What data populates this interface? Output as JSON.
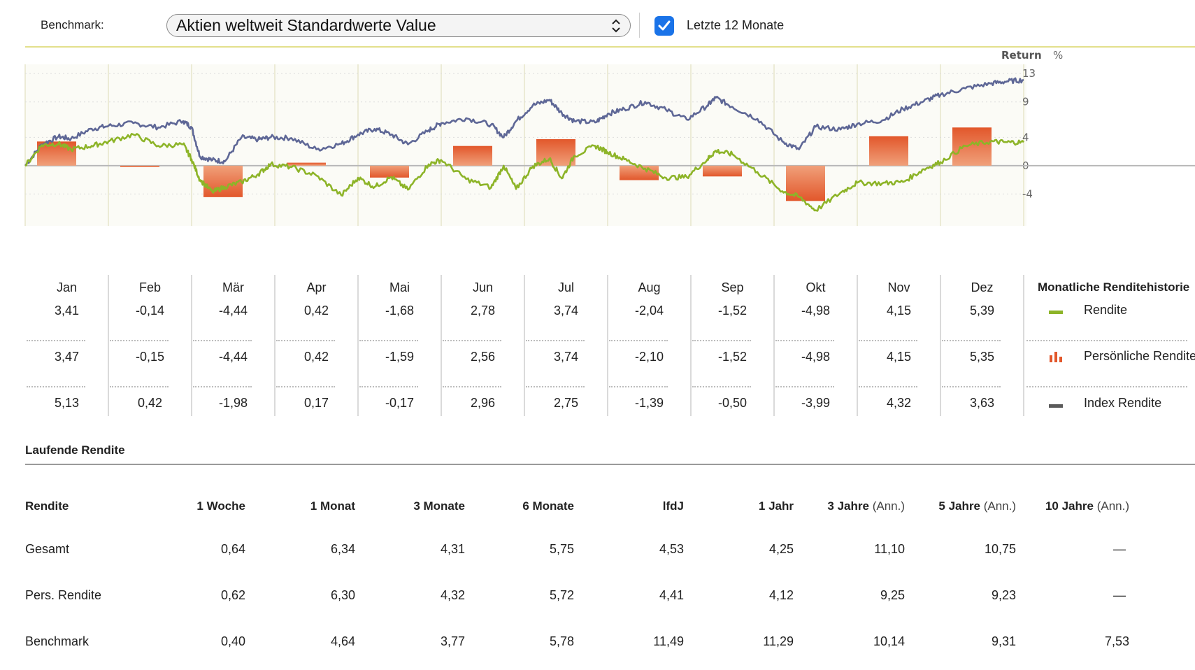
{
  "header": {
    "benchmark_label": "Benchmark:",
    "benchmark_value": "Aktien weltweit Standardwerte Value",
    "checkbox_label": "Letzte 12 Monate",
    "checkbox_checked": true
  },
  "colors": {
    "accent_line": "#e3e08c",
    "rendite": "#8db428",
    "index": "#5e6796",
    "bar": "#e2572b",
    "checkbox": "#1a73e8"
  },
  "chart_data": {
    "type": "line",
    "y_label": "Return",
    "y_unit": "%",
    "y_ticks": [
      13,
      9,
      4,
      0,
      -4
    ],
    "ylim": [
      -8.5,
      14.3
    ],
    "months": [
      "Jan",
      "Feb",
      "Mär",
      "Apr",
      "Mai",
      "Jun",
      "Jul",
      "Aug",
      "Sep",
      "Okt",
      "Nov",
      "Dez"
    ],
    "bars_monthly_rendite": [
      3.41,
      -0.14,
      -4.44,
      0.42,
      -1.68,
      2.78,
      3.74,
      -2.04,
      -1.52,
      -4.98,
      4.15,
      5.39
    ],
    "series": [
      {
        "name": "Index Rendite (cumulative)",
        "color_key": "index",
        "x": [
          0,
          0.2,
          0.4,
          0.55,
          0.8,
          1.0,
          1.3,
          1.6,
          1.9,
          2.0,
          2.1,
          2.25,
          2.4,
          2.6,
          2.8,
          2.95,
          3.2,
          3.5,
          3.8,
          4.0,
          4.2,
          4.4,
          4.6,
          4.85,
          5.0,
          5.3,
          5.6,
          5.75,
          5.9,
          6.1,
          6.3,
          6.45,
          6.6,
          6.85,
          7.0,
          7.2,
          7.45,
          7.7,
          7.95,
          8.2,
          8.3,
          8.5,
          8.8,
          9.1,
          9.3,
          9.5,
          9.8,
          10.0,
          10.3,
          10.55,
          10.8,
          11.0,
          11.3,
          11.6,
          11.8,
          12.0
        ],
        "values": [
          0.0,
          3.0,
          4.1,
          3.8,
          5.2,
          5.6,
          6.0,
          5.4,
          6.3,
          5.4,
          1.3,
          0.8,
          0.6,
          4.0,
          3.7,
          4.0,
          3.9,
          2.3,
          3.1,
          4.4,
          5.2,
          4.4,
          3.0,
          5.0,
          6.0,
          6.7,
          5.8,
          4.0,
          6.3,
          8.5,
          9.3,
          7.4,
          6.3,
          6.1,
          7.3,
          8.0,
          9.0,
          7.9,
          6.5,
          8.5,
          9.6,
          8.3,
          6.6,
          3.4,
          2.3,
          5.5,
          5.1,
          5.9,
          6.4,
          8.0,
          9.1,
          10.0,
          10.9,
          11.6,
          11.9,
          12.1
        ]
      },
      {
        "name": "Rendite (cumulative)",
        "color_key": "rendite",
        "x": [
          0,
          0.2,
          0.4,
          0.55,
          0.8,
          1.0,
          1.3,
          1.6,
          1.9,
          2.0,
          2.1,
          2.25,
          2.4,
          2.6,
          2.8,
          2.95,
          3.2,
          3.5,
          3.8,
          4.0,
          4.2,
          4.4,
          4.6,
          4.85,
          5.0,
          5.3,
          5.6,
          5.75,
          5.9,
          6.1,
          6.3,
          6.45,
          6.6,
          6.85,
          7.0,
          7.2,
          7.45,
          7.7,
          7.95,
          8.2,
          8.3,
          8.5,
          8.8,
          9.1,
          9.3,
          9.5,
          9.8,
          10.0,
          10.3,
          10.55,
          10.8,
          11.0,
          11.3,
          11.6,
          11.8,
          12.0
        ],
        "values": [
          0.0,
          2.9,
          3.1,
          2.3,
          2.8,
          3.4,
          4.4,
          2.8,
          3.0,
          0.9,
          -2.0,
          -3.7,
          -3.0,
          -2.3,
          -1.2,
          0.2,
          -0.2,
          -1.4,
          -4.2,
          -1.7,
          -3.0,
          -1.6,
          -3.4,
          0.2,
          0.8,
          -1.9,
          -3.1,
          0.0,
          -3.3,
          -0.1,
          1.0,
          -1.8,
          1.4,
          2.8,
          1.9,
          0.9,
          -0.4,
          -1.7,
          -1.6,
          0.9,
          2.1,
          1.6,
          -0.9,
          -3.6,
          -4.4,
          -6.3,
          -3.8,
          -2.4,
          -2.5,
          -2.3,
          -0.5,
          0.5,
          2.8,
          3.4,
          3.3,
          3.3
        ]
      }
    ]
  },
  "monthly": {
    "months": [
      "Jan",
      "Feb",
      "Mär",
      "Apr",
      "Mai",
      "Jun",
      "Jul",
      "Aug",
      "Sep",
      "Okt",
      "Nov",
      "Dez"
    ],
    "rendite": [
      "3,41",
      "-0,14",
      "-4,44",
      "0,42",
      "-1,68",
      "2,78",
      "3,74",
      "-2,04",
      "-1,52",
      "-4,98",
      "4,15",
      "5,39"
    ],
    "pers": [
      "3,47",
      "-0,15",
      "-4,44",
      "0,42",
      "-1,59",
      "2,56",
      "3,74",
      "-2,10",
      "-1,52",
      "-4,98",
      "4,15",
      "5,35"
    ],
    "index": [
      "5,13",
      "0,42",
      "-1,98",
      "0,17",
      "-0,17",
      "2,96",
      "2,75",
      "-1,39",
      "-0,50",
      "-3,99",
      "4,32",
      "3,63"
    ]
  },
  "legend": {
    "title": "Monatliche Renditehistorie",
    "rendite": "Rendite",
    "pers": "Persönliche Rendite",
    "index": "Index Rendite"
  },
  "running": {
    "title": "Laufende Rendite",
    "head_label": "Rendite",
    "columns": [
      {
        "label": "1 Woche",
        "ann": ""
      },
      {
        "label": "1 Monat",
        "ann": ""
      },
      {
        "label": "3 Monate",
        "ann": ""
      },
      {
        "label": "6 Monate",
        "ann": ""
      },
      {
        "label": "lfdJ",
        "ann": ""
      },
      {
        "label": "1 Jahr",
        "ann": ""
      },
      {
        "label": "3 Jahre",
        "ann": "(Ann.)"
      },
      {
        "label": "5 Jahre",
        "ann": "(Ann.)"
      },
      {
        "label": "10 Jahre",
        "ann": "(Ann.)"
      }
    ],
    "rows": [
      {
        "label": "Gesamt",
        "values": [
          "0,64",
          "6,34",
          "4,31",
          "5,75",
          "4,53",
          "4,25",
          "11,10",
          "10,75",
          "—"
        ]
      },
      {
        "label": "Pers. Rendite",
        "values": [
          "0,62",
          "6,30",
          "4,32",
          "5,72",
          "4,41",
          "4,12",
          "9,25",
          "9,23",
          "—"
        ]
      },
      {
        "label": "Benchmark",
        "values": [
          "0,40",
          "4,64",
          "3,77",
          "5,78",
          "11,49",
          "11,29",
          "10,14",
          "9,31",
          "7,53"
        ]
      }
    ]
  }
}
